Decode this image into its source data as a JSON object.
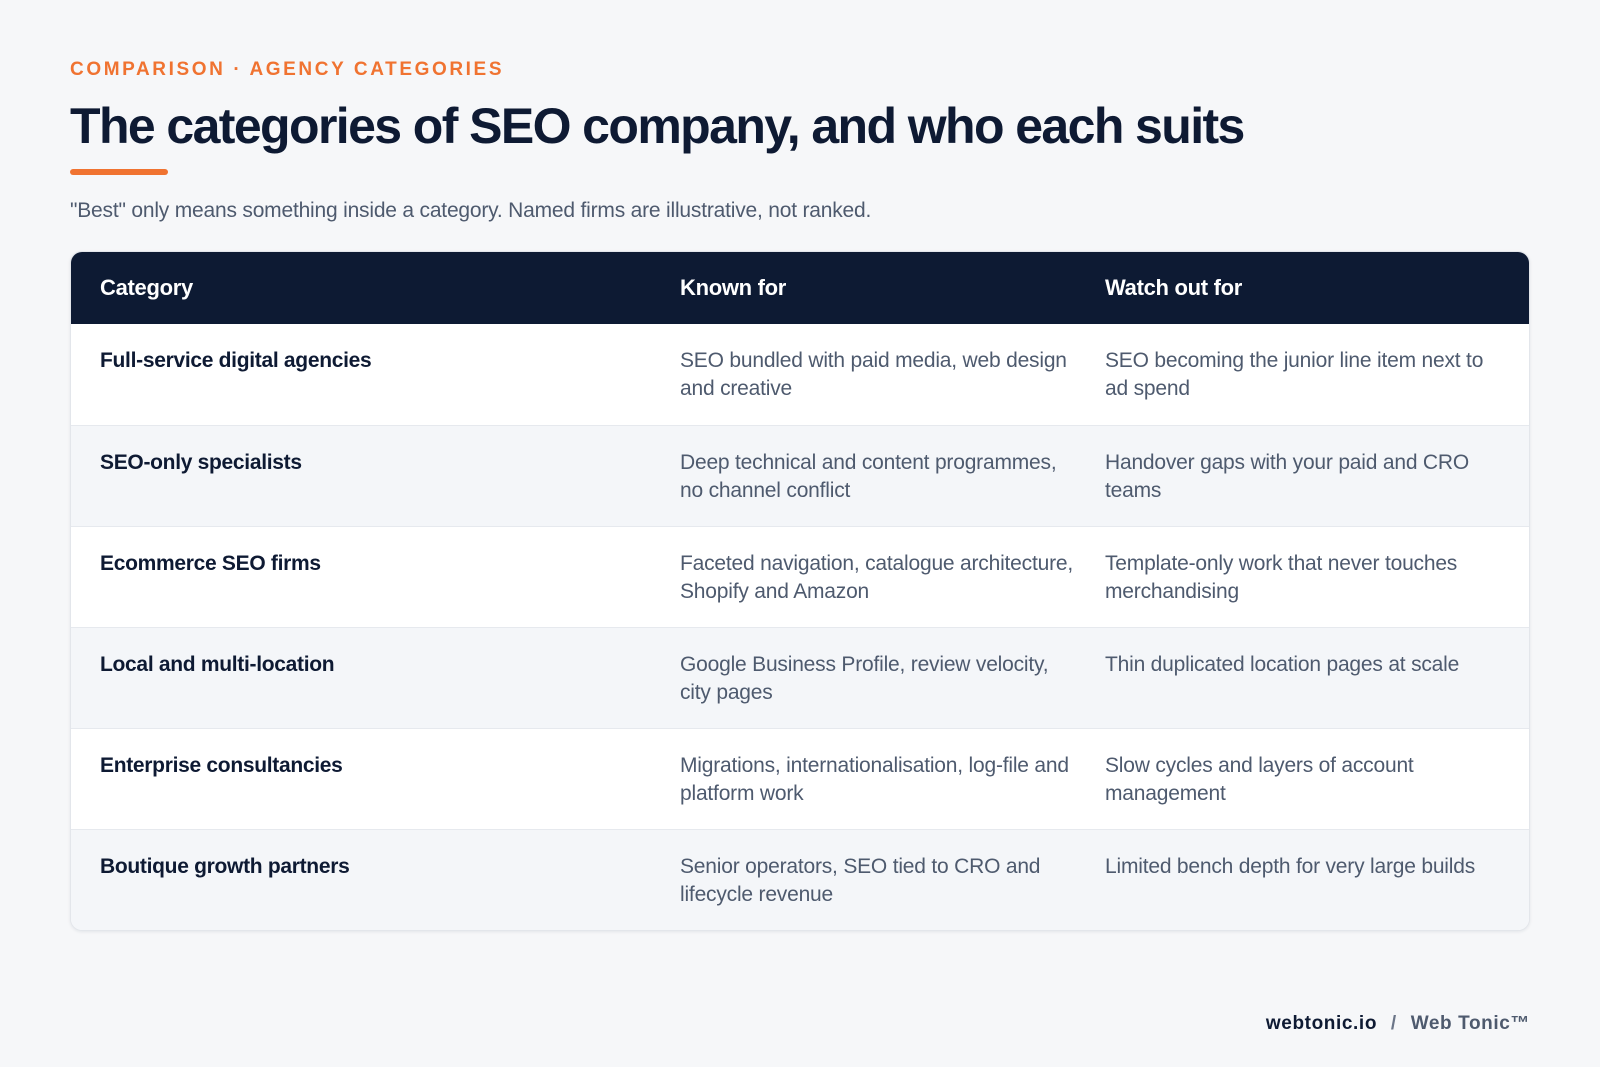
{
  "header": {
    "eyebrow": "COMPARISON · AGENCY CATEGORIES",
    "title": "The categories of SEO company, and who each suits",
    "subtitle": "\"Best\" only means something inside a category. Named firms are illustrative, not ranked."
  },
  "table": {
    "columns": [
      "Category",
      "Known for",
      "Watch out for"
    ],
    "rows": [
      {
        "category": "Full-service digital agencies",
        "known_for": "SEO bundled with paid media, web design and creative",
        "watch_out": "SEO becoming the junior line item next to ad spend"
      },
      {
        "category": "SEO-only specialists",
        "known_for": "Deep technical and content programmes, no channel conflict",
        "watch_out": "Handover gaps with your paid and CRO teams"
      },
      {
        "category": "Ecommerce SEO firms",
        "known_for": "Faceted navigation, catalogue architecture, Shopify and Amazon",
        "watch_out": "Template-only work that never touches merchandising"
      },
      {
        "category": "Local and multi-location",
        "known_for": "Google Business Profile, review velocity, city pages",
        "watch_out": "Thin duplicated location pages at scale"
      },
      {
        "category": "Enterprise consultancies",
        "known_for": "Migrations, internationalisation, log-file and platform work",
        "watch_out": "Slow cycles and layers of account management"
      },
      {
        "category": "Boutique growth partners",
        "known_for": "Senior operators, SEO tied to CRO and lifecycle revenue",
        "watch_out": "Limited bench depth for very large builds"
      }
    ]
  },
  "footer": {
    "site": "webtonic.io",
    "separator": "/",
    "brand": "Web Tonic™"
  },
  "colors": {
    "accent": "#f07331",
    "header_bg": "#0d1a33",
    "title": "#0e1a33",
    "body_text": "#4e5a6e"
  }
}
